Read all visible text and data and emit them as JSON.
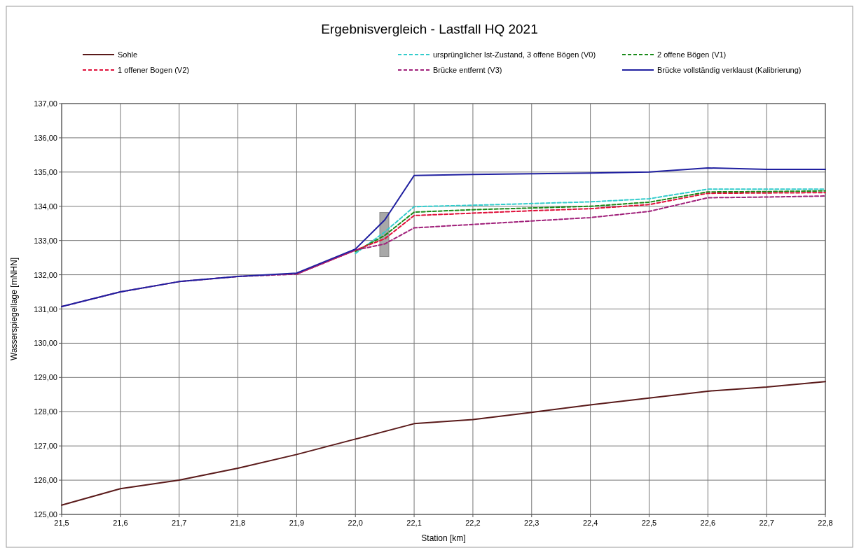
{
  "chart_data": {
    "type": "line",
    "title": "Ergebnisvergleich - Lastfall HQ 2021",
    "xlabel": "Station [km]",
    "ylabel": "Wasserspiegellage [mNHN]",
    "xlim": [
      21.5,
      22.8
    ],
    "xticks": [
      {
        "value": 21.5,
        "label": "21,5"
      },
      {
        "value": 21.6,
        "label": "21,6"
      },
      {
        "value": 21.7,
        "label": "21,7"
      },
      {
        "value": 21.8,
        "label": "21,8"
      },
      {
        "value": 21.9,
        "label": "21,9"
      },
      {
        "value": 22.0,
        "label": "22,0"
      },
      {
        "value": 22.1,
        "label": "22,1"
      },
      {
        "value": 22.2,
        "label": "22,2"
      },
      {
        "value": 22.3,
        "label": "22,3"
      },
      {
        "value": 22.4,
        "label": "22,4"
      },
      {
        "value": 22.5,
        "label": "22,5"
      },
      {
        "value": 22.6,
        "label": "22,6"
      },
      {
        "value": 22.7,
        "label": "22,7"
      },
      {
        "value": 22.8,
        "label": "22,8"
      }
    ],
    "ylim": [
      125,
      137
    ],
    "yticks": [
      {
        "value": 125,
        "label": "125,00"
      },
      {
        "value": 126,
        "label": "126,00"
      },
      {
        "value": 127,
        "label": "127,00"
      },
      {
        "value": 128,
        "label": "128,00"
      },
      {
        "value": 129,
        "label": "129,00"
      },
      {
        "value": 130,
        "label": "130,00"
      },
      {
        "value": 131,
        "label": "131,00"
      },
      {
        "value": 132,
        "label": "132,00"
      },
      {
        "value": 133,
        "label": "133,00"
      },
      {
        "value": 134,
        "label": "134,00"
      },
      {
        "value": 135,
        "label": "135,00"
      },
      {
        "value": 136,
        "label": "136,00"
      },
      {
        "value": 137,
        "label": "137,00"
      }
    ],
    "grid": true,
    "legend": "top",
    "series": [
      {
        "name": "Sohle",
        "color": "#5a1a1a",
        "line_style": "solid",
        "x": [
          21.5,
          21.6,
          21.7,
          21.8,
          21.9,
          22.0,
          22.1,
          22.2,
          22.3,
          22.4,
          22.5,
          22.6,
          22.7,
          22.8
        ],
        "values": [
          125.27,
          125.75,
          126.0,
          126.35,
          126.75,
          127.2,
          127.65,
          127.77,
          127.98,
          128.2,
          128.4,
          128.6,
          128.72,
          128.88
        ]
      },
      {
        "name": "ursprünglicher Ist-Zustand, 3 offene Bögen (V0)",
        "color": "#33cccc",
        "line_style": "dashed",
        "x": [
          22.0,
          22.05,
          22.1,
          22.2,
          22.3,
          22.4,
          22.5,
          22.6,
          22.7,
          22.8
        ],
        "values": [
          132.62,
          133.25,
          133.99,
          134.03,
          134.08,
          134.13,
          134.22,
          134.5,
          134.5,
          134.5
        ]
      },
      {
        "name": "2 offene Bögen (V1)",
        "color": "#1a8a1a",
        "line_style": "dashed",
        "x": [
          22.0,
          22.05,
          22.1,
          22.2,
          22.3,
          22.4,
          22.5,
          22.6,
          22.7,
          22.8
        ],
        "values": [
          132.68,
          133.15,
          133.83,
          133.9,
          133.95,
          134.0,
          134.12,
          134.42,
          134.43,
          134.45
        ]
      },
      {
        "name": "1 offener Bogen (V2)",
        "color": "#e0103a",
        "line_style": "dashed",
        "x": [
          21.9,
          22.0,
          22.05,
          22.1,
          22.2,
          22.3,
          22.4,
          22.5,
          22.6,
          22.7,
          22.8
        ],
        "values": [
          132.02,
          132.72,
          133.05,
          133.73,
          133.8,
          133.87,
          133.93,
          134.05,
          134.38,
          134.39,
          134.4
        ]
      },
      {
        "name": "Brücke entfernt (V3)",
        "color": "#a0207a",
        "line_style": "dashed",
        "x": [
          21.5,
          21.6,
          21.7,
          21.8,
          21.9,
          22.0,
          22.05,
          22.1,
          22.2,
          22.3,
          22.4,
          22.5,
          22.6,
          22.7,
          22.8
        ],
        "values": [
          131.07,
          131.5,
          131.8,
          131.95,
          132.02,
          132.72,
          132.9,
          133.37,
          133.47,
          133.57,
          133.67,
          133.85,
          134.25,
          134.27,
          134.3
        ]
      },
      {
        "name": "Brücke vollständig verklaust (Kalibrierung)",
        "color": "#2020a0",
        "line_style": "solid",
        "x": [
          21.5,
          21.6,
          21.7,
          21.8,
          21.9,
          22.0,
          22.05,
          22.1,
          22.2,
          22.3,
          22.4,
          22.5,
          22.6,
          22.7,
          22.8
        ],
        "values": [
          131.07,
          131.5,
          131.8,
          131.95,
          132.05,
          132.75,
          133.6,
          134.9,
          134.93,
          134.95,
          134.97,
          135.0,
          135.12,
          135.08,
          135.08
        ]
      }
    ]
  }
}
